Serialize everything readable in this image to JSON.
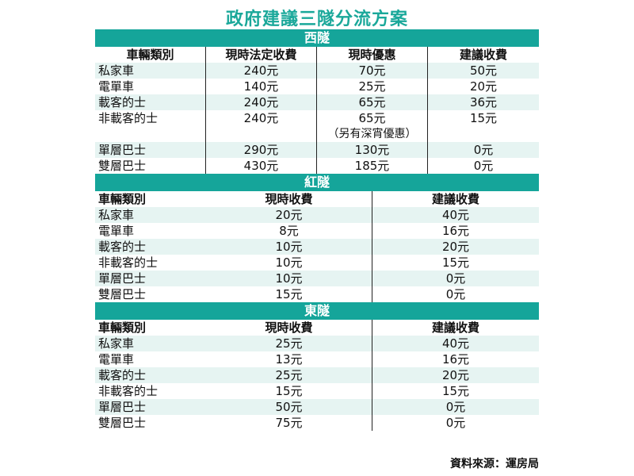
{
  "title": "政府建議三隧分流方案",
  "west": {
    "name": "西隧",
    "headers": [
      "車輛類別",
      "現時法定收費",
      "現時優惠",
      "建議收費"
    ],
    "rows": [
      [
        "私家車",
        "240元",
        "70元",
        "50元"
      ],
      [
        "電單車",
        "140元",
        "25元",
        "20元"
      ],
      [
        "載客的士",
        "240元",
        "65元",
        "36元"
      ],
      [
        "非載客的士",
        "240元",
        "65元",
        "15元"
      ],
      [
        "單層巴士",
        "290元",
        "130元",
        "0元"
      ],
      [
        "雙層巴士",
        "430元",
        "185元",
        "0元"
      ]
    ],
    "note": "（另有深宵優惠）"
  },
  "red": {
    "name": "紅隧",
    "headers": [
      "車輛類別",
      "現時收費",
      "建議收費"
    ],
    "rows": [
      [
        "私家車",
        "20元",
        "40元"
      ],
      [
        "電單車",
        "8元",
        "16元"
      ],
      [
        "載客的士",
        "10元",
        "20元"
      ],
      [
        "非載客的士",
        "10元",
        "15元"
      ],
      [
        "單層巴士",
        "10元",
        "0元"
      ],
      [
        "雙層巴士",
        "15元",
        "0元"
      ]
    ]
  },
  "east": {
    "name": "東隧",
    "headers": [
      "車輛類別",
      "現時收費",
      "建議收費"
    ],
    "rows": [
      [
        "私家車",
        "25元",
        "40元"
      ],
      [
        "電單車",
        "13元",
        "16元"
      ],
      [
        "載客的士",
        "25元",
        "20元"
      ],
      [
        "非載客的士",
        "15元",
        "15元"
      ],
      [
        "單層巴士",
        "50元",
        "0元"
      ],
      [
        "雙層巴士",
        "75元",
        "0元"
      ]
    ]
  },
  "source": "資料來源：運房局"
}
